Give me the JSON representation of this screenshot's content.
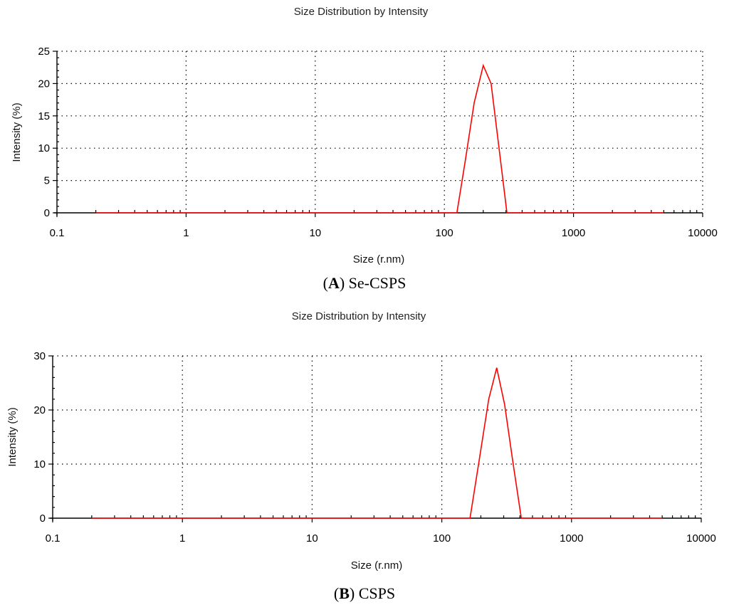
{
  "chart_data": [
    {
      "type": "line",
      "panel": "A",
      "title": "Size Distribution by Intensity",
      "xlabel": "Size (r.nm)",
      "ylabel": "Intensity (%)",
      "xscale": "log",
      "xlim": [
        0.1,
        10000
      ],
      "ylim": [
        0,
        25
      ],
      "x_ticks": [
        0.1,
        1,
        10,
        100,
        1000,
        10000
      ],
      "x_tick_labels": [
        "0.1",
        "1",
        "10",
        "100",
        "1000",
        "10000"
      ],
      "y_ticks": [
        0,
        5,
        10,
        15,
        20,
        25
      ],
      "y_tick_labels": [
        "0",
        "5",
        "10",
        "15",
        "20",
        "25"
      ],
      "grid": true,
      "caption_letter": "A",
      "caption_text": ") Se-CSPS",
      "series": [
        {
          "color": "#ff0000",
          "x": [
            0.2,
            125,
            145,
            170,
            200,
            230,
            265,
            305,
            5000
          ],
          "y": [
            0,
            0,
            8,
            17,
            22.8,
            20,
            10,
            0,
            0
          ]
        }
      ]
    },
    {
      "type": "line",
      "panel": "B",
      "title": "Size Distribution by Intensity",
      "xlabel": "Size (r.nm)",
      "ylabel": "Intensity (%)",
      "xscale": "log",
      "xlim": [
        0.1,
        10000
      ],
      "ylim": [
        0,
        30
      ],
      "x_ticks": [
        0.1,
        1,
        10,
        100,
        1000,
        10000
      ],
      "x_tick_labels": [
        "0.1",
        "1",
        "10",
        "100",
        "1000",
        "10000"
      ],
      "y_ticks": [
        0,
        10,
        20,
        30
      ],
      "y_tick_labels": [
        "0",
        "10",
        "20",
        "30"
      ],
      "grid": true,
      "caption_letter": "B",
      "caption_text": ") CSPS",
      "series": [
        {
          "color": "#ff0000",
          "x": [
            0.2,
            165,
            195,
            230,
            265,
            305,
            355,
            410,
            5000
          ],
          "y": [
            0,
            0,
            11,
            22,
            27.8,
            21,
            10,
            0,
            0
          ]
        }
      ]
    }
  ]
}
